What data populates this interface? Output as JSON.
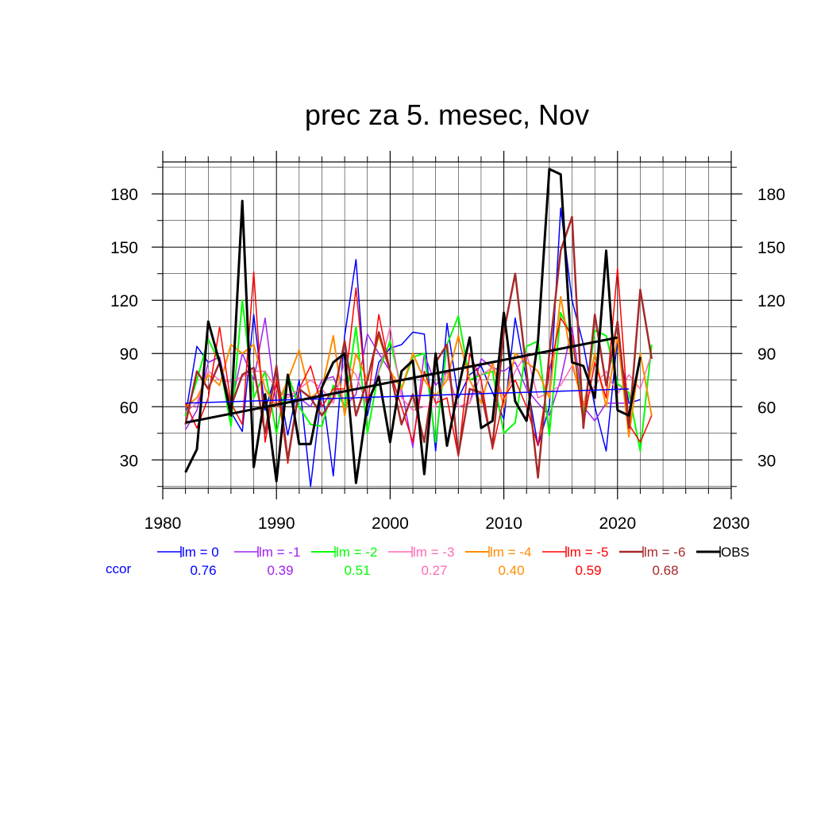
{
  "chart_data": {
    "type": "line",
    "title": "prec za 5. mesec, Nov",
    "xlabel": "",
    "ylabel": "",
    "xlim": [
      1980,
      2030
    ],
    "ylim": [
      14,
      198
    ],
    "x_ticks": [
      1980,
      1990,
      2000,
      2010,
      2020,
      2030
    ],
    "y_ticks": [
      30,
      60,
      90,
      120,
      150,
      180
    ],
    "grid": true,
    "legend_position": "bottom",
    "ccor_label": "ccor",
    "series": [
      {
        "name": "lm = 0",
        "color": "#0000ff",
        "ccor": "0.76",
        "width": 1.5,
        "x_start": 1982,
        "values": [
          55,
          94,
          85,
          88,
          57,
          46,
          112,
          58,
          80,
          44,
          75,
          15,
          70,
          21,
          100,
          143,
          55,
          85,
          93,
          95,
          102,
          101,
          35,
          107,
          65,
          78,
          83,
          68,
          53,
          110,
          75,
          38,
          60,
          172,
          120,
          95,
          60,
          35,
          99,
          62,
          64
        ]
      },
      {
        "name": "lm = -1",
        "color": "#a020f0",
        "ccor": "0.39",
        "width": 1.5,
        "x_start": 1982,
        "values": [
          47,
          58,
          85,
          88,
          60,
          90,
          75,
          110,
          60,
          67,
          65,
          60,
          75,
          77,
          60,
          67,
          101,
          90,
          80,
          70,
          37,
          90,
          72,
          80,
          60,
          62,
          87,
          82,
          80,
          85,
          70,
          62,
          55,
          75,
          105,
          60,
          52,
          62,
          62,
          62
        ]
      },
      {
        "name": "lm = -2",
        "color": "#00ff00",
        "ccor": "0.51",
        "width": 2,
        "x_start": 1982,
        "values": [
          55,
          75,
          98,
          85,
          49,
          120,
          65,
          80,
          45,
          78,
          60,
          50,
          49,
          72,
          60,
          105,
          45,
          80,
          97,
          70,
          88,
          90,
          40,
          95,
          111,
          75,
          78,
          80,
          45,
          51,
          94,
          97,
          44,
          113,
          99,
          55,
          103,
          100,
          73,
          68,
          35,
          95
        ]
      },
      {
        "name": "lm = -3",
        "color": "#ff69b4",
        "ccor": "0.27",
        "width": 1.5,
        "x_start": 1982,
        "values": [
          57,
          62,
          80,
          75,
          74,
          77,
          80,
          80,
          70,
          65,
          70,
          75,
          70,
          62,
          85,
          78,
          60,
          80,
          105,
          65,
          58,
          60,
          60,
          80,
          60,
          62,
          78,
          82,
          65,
          80,
          90,
          65,
          68,
          72,
          83,
          62,
          72,
          80,
          67,
          78,
          70,
          90
        ]
      },
      {
        "name": "lm = -4",
        "color": "#ff8c00",
        "ccor": "0.40",
        "width": 2,
        "x_start": 1982,
        "values": [
          60,
          65,
          78,
          72,
          95,
          90,
          95,
          70,
          60,
          75,
          92,
          65,
          70,
          100,
          55,
          90,
          75,
          100,
          80,
          70,
          90,
          75,
          66,
          75,
          100,
          75,
          62,
          85,
          60,
          90,
          85,
          80,
          65,
          122,
          85,
          60,
          90,
          60,
          100,
          43,
          90,
          55
        ]
      },
      {
        "name": "lm = -5",
        "color": "#ff0000",
        "ccor": "0.59",
        "width": 1.5,
        "x_start": 1982,
        "values": [
          62,
          48,
          65,
          105,
          62,
          50,
          136,
          40,
          75,
          28,
          70,
          83,
          60,
          70,
          70,
          127,
          60,
          112,
          80,
          60,
          40,
          80,
          62,
          65,
          32,
          90,
          75,
          36,
          65,
          75,
          60,
          38,
          80,
          110,
          100,
          50,
          85,
          65,
          138,
          50,
          40,
          55
        ]
      },
      {
        "name": "lm = -6",
        "color": "#a52a2a",
        "ccor": "0.68",
        "width": 2.5,
        "x_start": 1982,
        "values": [
          50,
          80,
          70,
          85,
          60,
          78,
          82,
          45,
          83,
          30,
          70,
          65,
          55,
          65,
          97,
          55,
          75,
          102,
          80,
          50,
          67,
          40,
          85,
          95,
          33,
          70,
          68,
          38,
          102,
          135,
          80,
          20,
          90,
          148,
          167,
          48,
          112,
          72,
          108,
          48,
          126,
          87
        ]
      },
      {
        "name": "OBS",
        "color": "#000000",
        "ccor": "",
        "width": 3,
        "x_start": 1982,
        "values": [
          23,
          36,
          108,
          85,
          55,
          176,
          26,
          67,
          18,
          78,
          39,
          39,
          71,
          85,
          90,
          17,
          62,
          77,
          40,
          80,
          86,
          22,
          90,
          38,
          70,
          99,
          48,
          52,
          113,
          63,
          52,
          97,
          194,
          191,
          85,
          83,
          65,
          148,
          58,
          55,
          88
        ]
      }
    ],
    "trendlines": [
      {
        "series": "lm = 0",
        "color": "#0000ff",
        "width": 1.5,
        "x": [
          1982,
          2021
        ],
        "y": [
          62,
          70
        ]
      },
      {
        "series": "OBS",
        "color": "#000000",
        "width": 3,
        "x": [
          1982,
          2020
        ],
        "y": [
          51,
          99
        ]
      }
    ]
  }
}
